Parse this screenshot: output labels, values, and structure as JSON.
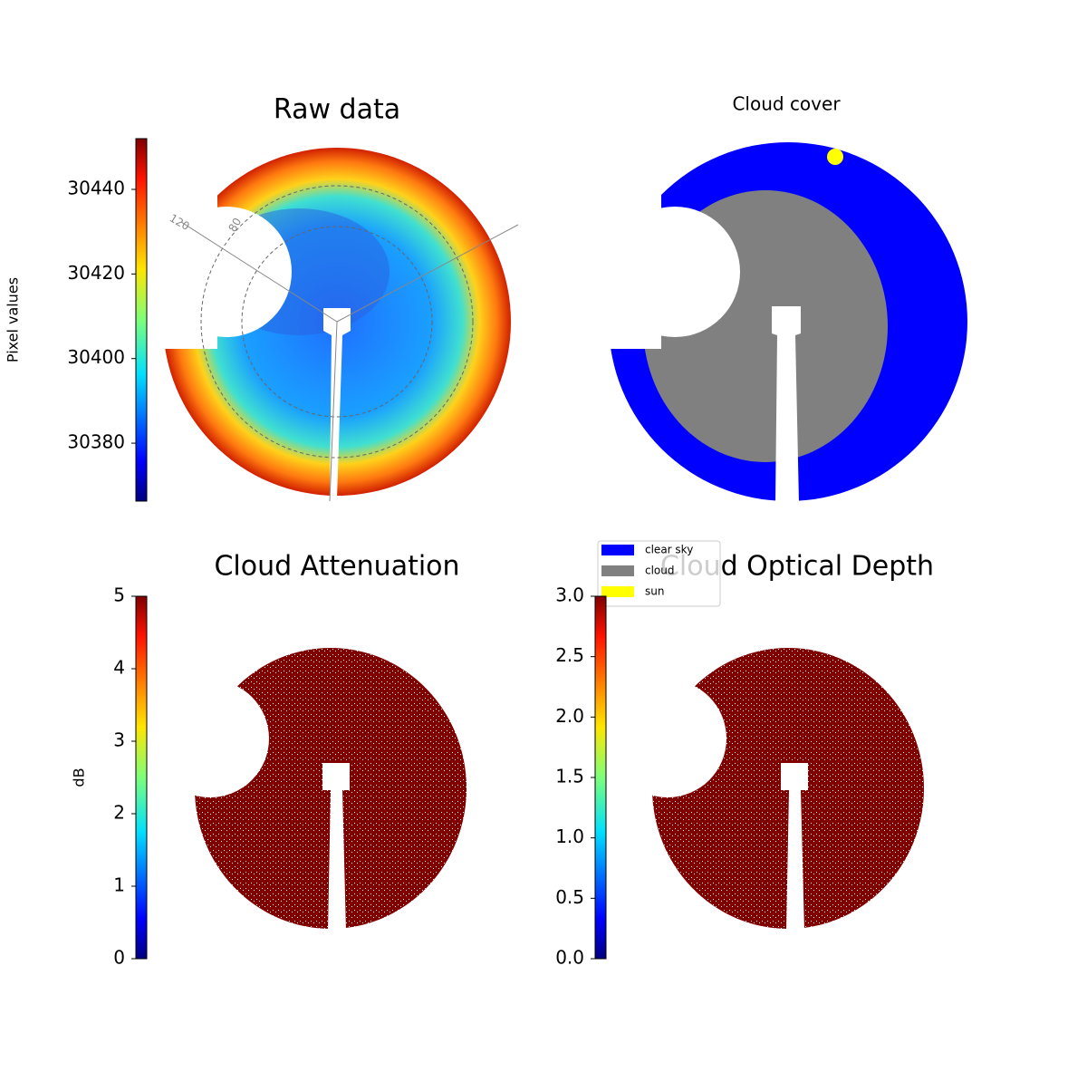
{
  "chart_data": [
    {
      "type": "image",
      "title": "Raw data",
      "colorbar_label": "Pixel values",
      "ylim": [
        30366.3,
        30452
      ],
      "yticks": [
        30380,
        30400,
        30420,
        30440
      ],
      "annotations": [
        "120",
        "80"
      ]
    },
    {
      "type": "image",
      "title": "Cloud cover",
      "categories": [
        "clear sky",
        "cloud",
        "sun"
      ],
      "colors": [
        "#0000ff",
        "#808080",
        "#ffff00"
      ]
    },
    {
      "type": "image",
      "title": "Cloud Attenuation",
      "colorbar_label": "dB",
      "ylim": [
        0,
        5
      ],
      "yticks": [
        0,
        1,
        2,
        3,
        4,
        5
      ]
    },
    {
      "type": "image",
      "title": "Cloud Optical Depth",
      "ylim": [
        0,
        3
      ],
      "yticks": [
        {
          "value": 0,
          "label": "0.0"
        },
        0.5,
        {
          "value": 1,
          "label": "1.0"
        },
        1.5,
        {
          "value": 2,
          "label": "2.0"
        },
        2.5,
        {
          "value": 3,
          "label": "3.0"
        }
      ]
    }
  ]
}
